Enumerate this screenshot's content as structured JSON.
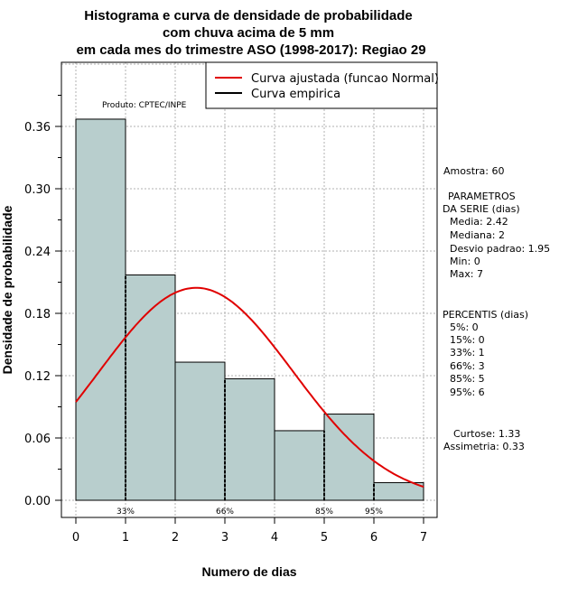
{
  "chart_data": {
    "type": "bar",
    "title_lines": [
      "Histograma e curva de densidade de probabilidade",
      "com chuva acima de 5 mm",
      "em cada mes do trimestre ASO (1998-2017): Regiao 29"
    ],
    "xlabel": "Numero de dias",
    "ylabel": "Densidade de probabilidade",
    "xlim": [
      0,
      7
    ],
    "ylim": [
      0,
      0.42
    ],
    "x_ticks": [
      "0",
      "1",
      "2",
      "3",
      "4",
      "5",
      "6",
      "7"
    ],
    "y_ticks": [
      "0.00",
      "0.06",
      "0.12",
      "0.18",
      "0.24",
      "0.30",
      "0.36"
    ],
    "bins": [
      {
        "x0": 0,
        "x1": 1,
        "value": 0.367
      },
      {
        "x0": 1,
        "x1": 2,
        "value": 0.217
      },
      {
        "x0": 2,
        "x1": 3,
        "value": 0.133
      },
      {
        "x0": 3,
        "x1": 4,
        "value": 0.117
      },
      {
        "x0": 4,
        "x1": 5,
        "value": 0.067
      },
      {
        "x0": 5,
        "x1": 6,
        "value": 0.083
      },
      {
        "x0": 6,
        "x1": 7,
        "value": 0.017
      }
    ],
    "normal_curve": {
      "name": "Curva ajustada (funcao Normal)",
      "mean": 2.42,
      "sd": 1.95,
      "color": "#e00000"
    },
    "empirical_curve": {
      "name": "Curva empirica",
      "color": "#000000"
    },
    "percentile_markers": [
      {
        "x": 1,
        "label": "33%"
      },
      {
        "x": 3,
        "label": "66%"
      },
      {
        "x": 5,
        "label": "85%"
      },
      {
        "x": 6,
        "label": "95%"
      }
    ],
    "bar_color": "#b8cecd",
    "grid": true,
    "legend_position": "top-right",
    "product_label": "Produto: CPTEC/INPE"
  },
  "stats": {
    "amostra": "Amostra: 60",
    "parametros_title_1": "PARAMETROS",
    "parametros_title_2": "DA SERIE (dias)",
    "media": "Media: 2.42",
    "mediana": "Mediana: 2",
    "desvio": "Desvio padrao: 1.95",
    "min": "Min: 0",
    "max": "Max: 7",
    "percentis_title": "PERCENTIS (dias)",
    "p5": "5%: 0",
    "p15": "15%: 0",
    "p33": "33%: 1",
    "p66": "66%: 3",
    "p85": "85%: 5",
    "p95": "95%: 6",
    "curtose": "Curtose: 1.33",
    "assimetria": "Assimetria: 0.33"
  }
}
